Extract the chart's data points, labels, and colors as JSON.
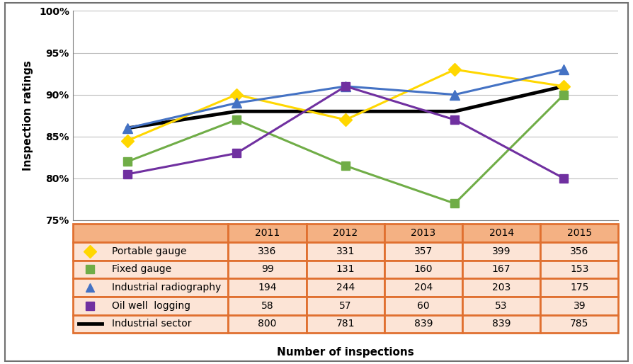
{
  "years": [
    2011,
    2012,
    2013,
    2014,
    2015
  ],
  "portable_gauge": [
    84.5,
    90.0,
    87.0,
    93.0,
    91.0
  ],
  "fixed_gauge": [
    82.0,
    87.0,
    81.5,
    77.0,
    90.0
  ],
  "industrial_radiography": [
    86.0,
    89.0,
    91.0,
    90.0,
    93.0
  ],
  "oil_well_logging": [
    80.5,
    83.0,
    91.0,
    87.0,
    80.0
  ],
  "industrial_sector": [
    86.0,
    88.0,
    88.0,
    88.0,
    91.0
  ],
  "table_headers": [
    "",
    "2011",
    "2012",
    "2013",
    "2014",
    "2015"
  ],
  "table_rows": [
    [
      "Portable gauge",
      "336",
      "331",
      "357",
      "399",
      "356"
    ],
    [
      "Fixed gauge",
      "99",
      "131",
      "160",
      "167",
      "153"
    ],
    [
      "Industrial radiography",
      "194",
      "244",
      "204",
      "203",
      "175"
    ],
    [
      "Oil well  logging",
      "58",
      "57",
      "60",
      "53",
      "39"
    ],
    [
      "Industrial sector",
      "800",
      "781",
      "839",
      "839",
      "785"
    ]
  ],
  "colors": {
    "portable_gauge": "#FFD700",
    "fixed_gauge": "#70AD47",
    "industrial_radiography": "#4472C4",
    "oil_well_logging": "#7030A0",
    "industrial_sector": "#000000",
    "table_header_bg": "#F4B183",
    "table_row_bg": "#FCE4D6",
    "table_border": "#E07030"
  },
  "row_markers": [
    "D",
    "s",
    "^",
    "s",
    "line"
  ],
  "row_colors": [
    "#FFD700",
    "#70AD47",
    "#4472C4",
    "#7030A0",
    "#000000"
  ],
  "ylabel": "Inspection ratings",
  "xlabel": "Number of inspections",
  "ylim": [
    75,
    100
  ],
  "yticks": [
    75,
    80,
    85,
    90,
    95,
    100
  ],
  "col_widths": [
    0.285,
    0.143,
    0.143,
    0.143,
    0.143,
    0.143
  ]
}
